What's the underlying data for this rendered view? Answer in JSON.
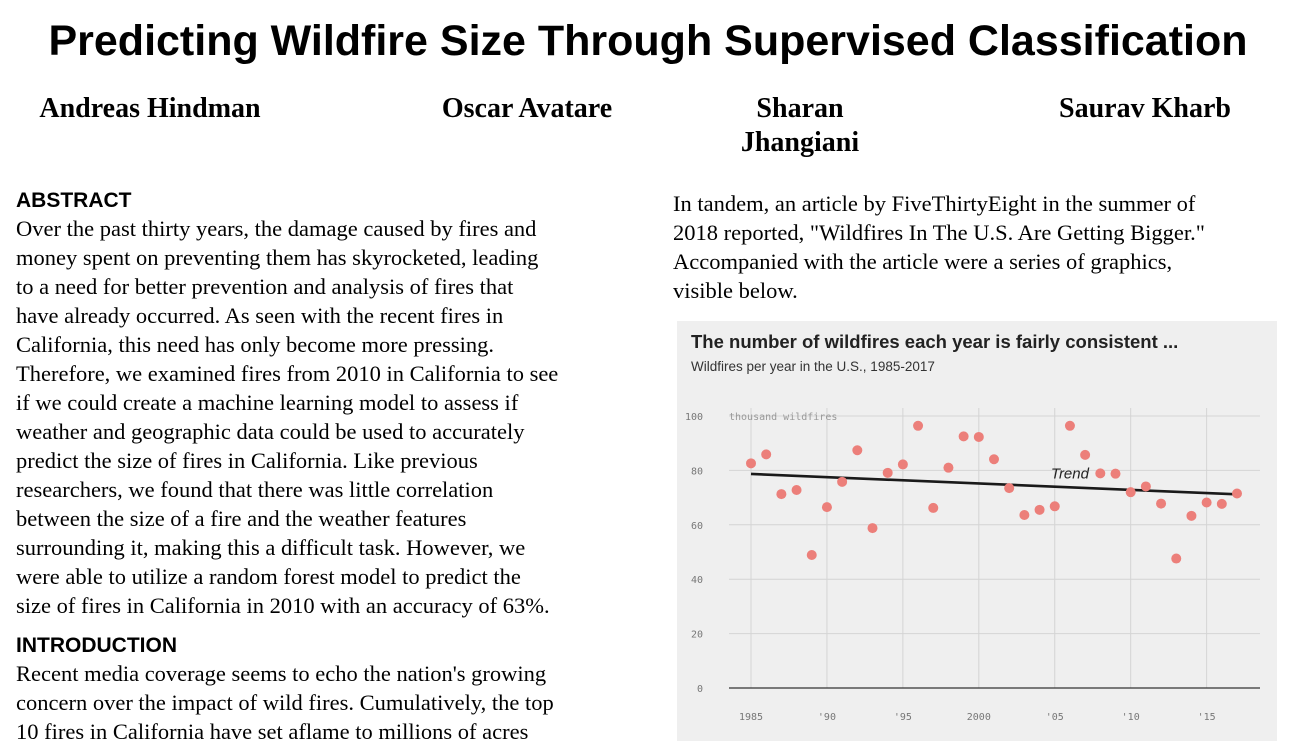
{
  "paper": {
    "title": "Predicting Wildfire Size Through Supervised Classification",
    "authors": [
      {
        "name": "Andreas Hindman"
      },
      {
        "name": "Oscar Avatare"
      },
      {
        "name_line1": "Sharan",
        "name_line2": "Jhangiani"
      },
      {
        "name": "Saurav Kharb"
      }
    ]
  },
  "abstract": {
    "heading": "ABSTRACT",
    "lines": [
      "Over the past thirty years, the damage caused by fires and",
      "money spent on preventing them has skyrocketed, leading",
      "to a need for better prevention and analysis of fires that",
      "have already occurred. As seen with the recent fires in",
      "California, this need has only become more pressing.",
      "Therefore, we examined fires from 2010 in California to see",
      "if we could create a machine learning model to assess if",
      "weather and geographic data could be used to accurately",
      "predict the size of fires in California. Like previous",
      "researchers, we found that there was little correlation",
      "between the size of a fire and the weather features",
      "surrounding it, making this a difficult task. However, we",
      "were able to utilize a random forest model to predict the",
      "size of fires in California in 2010 with an accuracy of 63%."
    ]
  },
  "introduction": {
    "heading": "INTRODUCTION",
    "lines": [
      "Recent media coverage seems to echo the nation's growing",
      "concern over the impact of wild fires. Cumulatively, the top",
      "10 fires in California have set aflame to millions of acres"
    ]
  },
  "right_column": {
    "lines": [
      "In tandem, an article by FiveThirtyEight in the summer of",
      "2018 reported, \"Wildfires In The U.S. Are Getting Bigger.\"",
      "Accompanied with the article were a series of graphics,",
      "visible below."
    ]
  },
  "chart_data": {
    "type": "scatter",
    "title": "The number of wildfires each year is fairly consistent ...",
    "subtitle": "Wildfires per year in the U.S., 1985-2017",
    "ylabel": "thousand wildfires",
    "xlabel": "",
    "xlim": [
      1985,
      2017
    ],
    "ylim": [
      0,
      100
    ],
    "yticks": [
      0,
      20,
      40,
      60,
      80,
      100
    ],
    "xticks": [
      1985,
      1990,
      1995,
      2000,
      2005,
      2010,
      2015
    ],
    "xtick_labels": [
      "1985",
      "'90",
      "'95",
      "2000",
      "'05",
      "'10",
      "'15"
    ],
    "grid": true,
    "x": [
      1985,
      1986,
      1987,
      1988,
      1989,
      1990,
      1991,
      1992,
      1993,
      1994,
      1995,
      1996,
      1997,
      1998,
      1999,
      2000,
      2001,
      2002,
      2003,
      2004,
      2005,
      2006,
      2007,
      2008,
      2009,
      2010,
      2011,
      2012,
      2013,
      2014,
      2015,
      2016,
      2017
    ],
    "y": [
      82.6,
      85.9,
      71.3,
      72.8,
      48.9,
      66.5,
      75.8,
      87.4,
      58.8,
      79.1,
      82.2,
      96.4,
      66.2,
      81.0,
      92.5,
      92.3,
      84.1,
      73.5,
      63.6,
      65.5,
      66.8,
      96.4,
      85.7,
      78.9,
      78.8,
      72.0,
      74.1,
      67.8,
      47.6,
      63.3,
      68.2,
      67.7,
      71.5
    ],
    "trend": {
      "label": "Trend",
      "y_start": 78.7,
      "y_end": 71.2
    },
    "colors": {
      "points": "#ec7f7a",
      "trend": "#1a1a1a",
      "background": "#efefef",
      "grid": "#d4d4d4"
    }
  }
}
